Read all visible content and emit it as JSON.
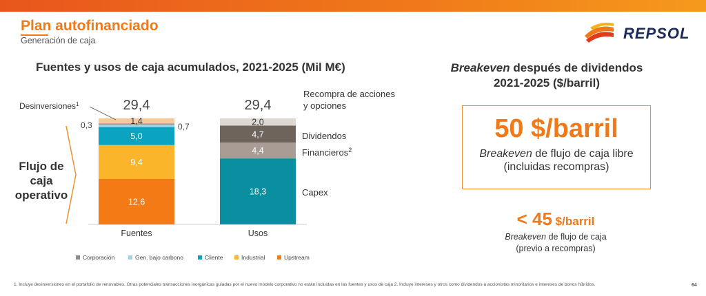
{
  "header": {
    "title": "Plan autofinanciado",
    "subtitle": "Generación de caja",
    "logo_text": "REPSOL"
  },
  "chart_data": {
    "type": "bar",
    "title": "Fuentes y usos de caja acumulados, 2021-2025 (Mil M€)",
    "categories": [
      "Fuentes",
      "Usos"
    ],
    "totals": [
      "29,4",
      "29,4"
    ],
    "stacked": true,
    "bars": [
      {
        "category": "Fuentes",
        "segments": [
          {
            "label": "Upstream",
            "value": 12.6,
            "display": "12,6",
            "color": "#f47a16"
          },
          {
            "label": "Industrial",
            "value": 9.4,
            "display": "9,4",
            "color": "#fab52a"
          },
          {
            "label": "Cliente",
            "value": 5.0,
            "display": "5,0",
            "color": "#0aa3c0"
          },
          {
            "label": "Gen. bajo carbono",
            "value": 0.7,
            "display": "0,7",
            "color": "#9fd3e6"
          },
          {
            "label": "Corporación",
            "value": 0.3,
            "display": "0,3",
            "color": "#8c8c8c"
          },
          {
            "label": "Desinversiones",
            "value": 1.4,
            "display": "1,4",
            "color": "#f6c99d"
          }
        ]
      },
      {
        "category": "Usos",
        "segments": [
          {
            "label": "Capex",
            "value": 18.3,
            "display": "18,3",
            "color": "#0a8fa0"
          },
          {
            "label": "Financieros",
            "value": 4.4,
            "display": "4,4",
            "color": "#a89c94"
          },
          {
            "label": "Dividendos",
            "value": 4.7,
            "display": "4,7",
            "color": "#6e645c"
          },
          {
            "label": "Recompra de acciones y opciones",
            "value": 2.0,
            "display": "2,0",
            "color": "#ddd8d2"
          }
        ]
      }
    ],
    "ylim": [
      0,
      29.4
    ],
    "legend": {
      "position": "bottom",
      "items": [
        {
          "label": "Corporación",
          "color": "#8c8c8c"
        },
        {
          "label": "Gen. bajo carbono",
          "color": "#9fd3e6"
        },
        {
          "label": "Cliente",
          "color": "#0aa3c0"
        },
        {
          "label": "Industrial",
          "color": "#fab52a"
        },
        {
          "label": "Upstream",
          "color": "#f47a16"
        }
      ]
    },
    "annotations": {
      "desinversiones": "Desinversiones",
      "desinversiones_sup": "1",
      "corporacion_val": "0,3",
      "gen_bajo_carbono_val": "0,7",
      "recompra_line1": "Recompra de acciones",
      "recompra_line2": "y opciones",
      "dividendos": "Dividendos",
      "financieros": "Financieros",
      "financieros_sup": "2",
      "capex": "Capex",
      "flujo_line1": "Flujo de",
      "flujo_line2": "caja",
      "flujo_line3": "operativo"
    }
  },
  "breakeven": {
    "title_italic": "Breakeven",
    "title_rest": " después de dividendos",
    "title_line2": "2021-2025  ($/barril)",
    "main_value": "50 $/barril",
    "main_desc_italic": "Breakeven",
    "main_desc_rest": " de flujo de caja libre",
    "main_desc_line2": "(incluidas recompras)",
    "second_value": "< 45",
    "second_unit": " $/barril",
    "second_desc_italic": "Breakeven",
    "second_desc_rest": " de flujo de caja",
    "second_desc_line2": "(previo a recompras)"
  },
  "footer": {
    "footnote": "1. Incluye desinversiones  en el portafolio de renovables. Otras potenciales transacciones inorgánicas guiadas por el nuevo modelo corporativo no están incluidas en las fuentes y usos de caja  2. Incluye intereses y otros como dividendos  a accionistas minoritarios e intereses de bonos híbridos.",
    "page": "64"
  }
}
